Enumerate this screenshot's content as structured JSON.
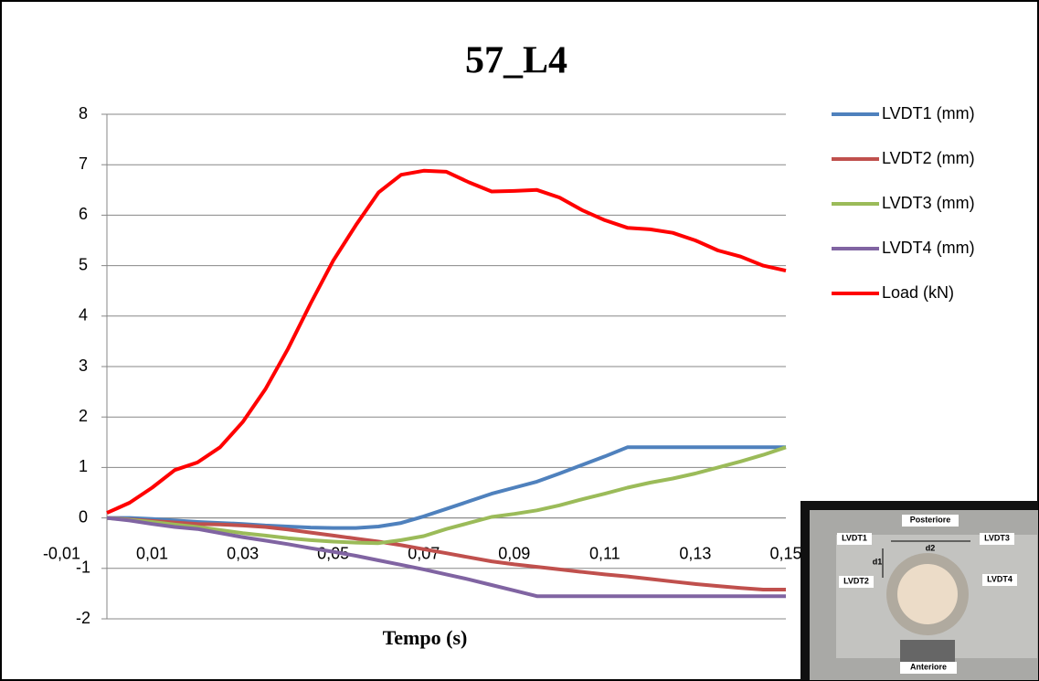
{
  "chart_data": {
    "type": "line",
    "title": "57_L4",
    "x_label": "Tempo (s)",
    "x": [
      0,
      0.005,
      0.01,
      0.015,
      0.02,
      0.025,
      0.03,
      0.035,
      0.04,
      0.045,
      0.05,
      0.055,
      0.06,
      0.065,
      0.07,
      0.075,
      0.08,
      0.085,
      0.09,
      0.095,
      0.1,
      0.105,
      0.11,
      0.115,
      0.12,
      0.125,
      0.13,
      0.135,
      0.14,
      0.145,
      0.15
    ],
    "series": [
      {
        "name": "LVDT1 (mm)",
        "color": "#4f81bd",
        "values": [
          0,
          0,
          -0.02,
          -0.05,
          -0.08,
          -0.1,
          -0.12,
          -0.15,
          -0.17,
          -0.19,
          -0.2,
          -0.2,
          -0.17,
          -0.1,
          0.03,
          0.18,
          0.33,
          0.48,
          0.6,
          0.72,
          0.88,
          1.05,
          1.22,
          1.4,
          1.4,
          1.4,
          1.4,
          1.4,
          1.4,
          1.4,
          1.4
        ]
      },
      {
        "name": "LVDT2 (mm)",
        "color": "#c0504d",
        "values": [
          0,
          -0.03,
          -0.06,
          -0.09,
          -0.12,
          -0.13,
          -0.15,
          -0.18,
          -0.23,
          -0.29,
          -0.35,
          -0.41,
          -0.47,
          -0.54,
          -0.62,
          -0.7,
          -0.78,
          -0.86,
          -0.92,
          -0.97,
          -1.02,
          -1.07,
          -1.12,
          -1.16,
          -1.21,
          -1.26,
          -1.31,
          -1.35,
          -1.39,
          -1.42,
          -1.42
        ]
      },
      {
        "name": "LVDT3 (mm)",
        "color": "#9bbb59",
        "values": [
          0,
          -0.04,
          -0.08,
          -0.13,
          -0.18,
          -0.24,
          -0.3,
          -0.35,
          -0.4,
          -0.44,
          -0.47,
          -0.49,
          -0.5,
          -0.44,
          -0.36,
          -0.22,
          -0.1,
          0.02,
          0.08,
          0.15,
          0.25,
          0.37,
          0.48,
          0.6,
          0.7,
          0.78,
          0.88,
          1.0,
          1.12,
          1.25,
          1.4
        ]
      },
      {
        "name": "LVDT4 (mm)",
        "color": "#8064a2",
        "values": [
          0,
          -0.05,
          -0.12,
          -0.18,
          -0.22,
          -0.3,
          -0.38,
          -0.45,
          -0.52,
          -0.6,
          -0.67,
          -0.75,
          -0.84,
          -0.93,
          -1.02,
          -1.12,
          -1.22,
          -1.33,
          -1.44,
          -1.55,
          -1.55,
          -1.55,
          -1.55,
          -1.55,
          -1.55,
          -1.55,
          -1.55,
          -1.55,
          -1.55,
          -1.55,
          -1.55
        ]
      },
      {
        "name": "Load (kN)",
        "color": "#ff0000",
        "values": [
          0.1,
          0.3,
          0.6,
          0.95,
          1.1,
          1.4,
          1.9,
          2.55,
          3.35,
          4.25,
          5.1,
          5.8,
          6.45,
          6.8,
          6.88,
          6.86,
          6.65,
          6.47,
          6.48,
          6.5,
          6.35,
          6.1,
          5.9,
          5.75,
          5.72,
          5.65,
          5.5,
          5.3,
          5.18,
          5.0,
          4.9
        ]
      }
    ],
    "xlim": [
      0,
      0.15
    ],
    "xticks": [
      {
        "value": -0.01,
        "label": "-0,01"
      },
      {
        "value": 0.01,
        "label": "0,01"
      },
      {
        "value": 0.03,
        "label": "0,03"
      },
      {
        "value": 0.05,
        "label": "0,05"
      },
      {
        "value": 0.07,
        "label": "0,07"
      },
      {
        "value": 0.09,
        "label": "0,09"
      },
      {
        "value": 0.11,
        "label": "0,11"
      },
      {
        "value": 0.13,
        "label": "0,13"
      },
      {
        "value": 0.15,
        "label": "0,15"
      }
    ],
    "ylim": [
      -2,
      8
    ],
    "yticks": [
      -2,
      -1,
      0,
      1,
      2,
      3,
      4,
      5,
      6,
      7,
      8
    ],
    "grid": true,
    "legend": "right"
  },
  "inset": {
    "labels": [
      "Posteriore",
      "LVDT1",
      "LVDT3",
      "d1",
      "d2",
      "LVDT2",
      "LVDT4",
      "Anteriore"
    ]
  }
}
